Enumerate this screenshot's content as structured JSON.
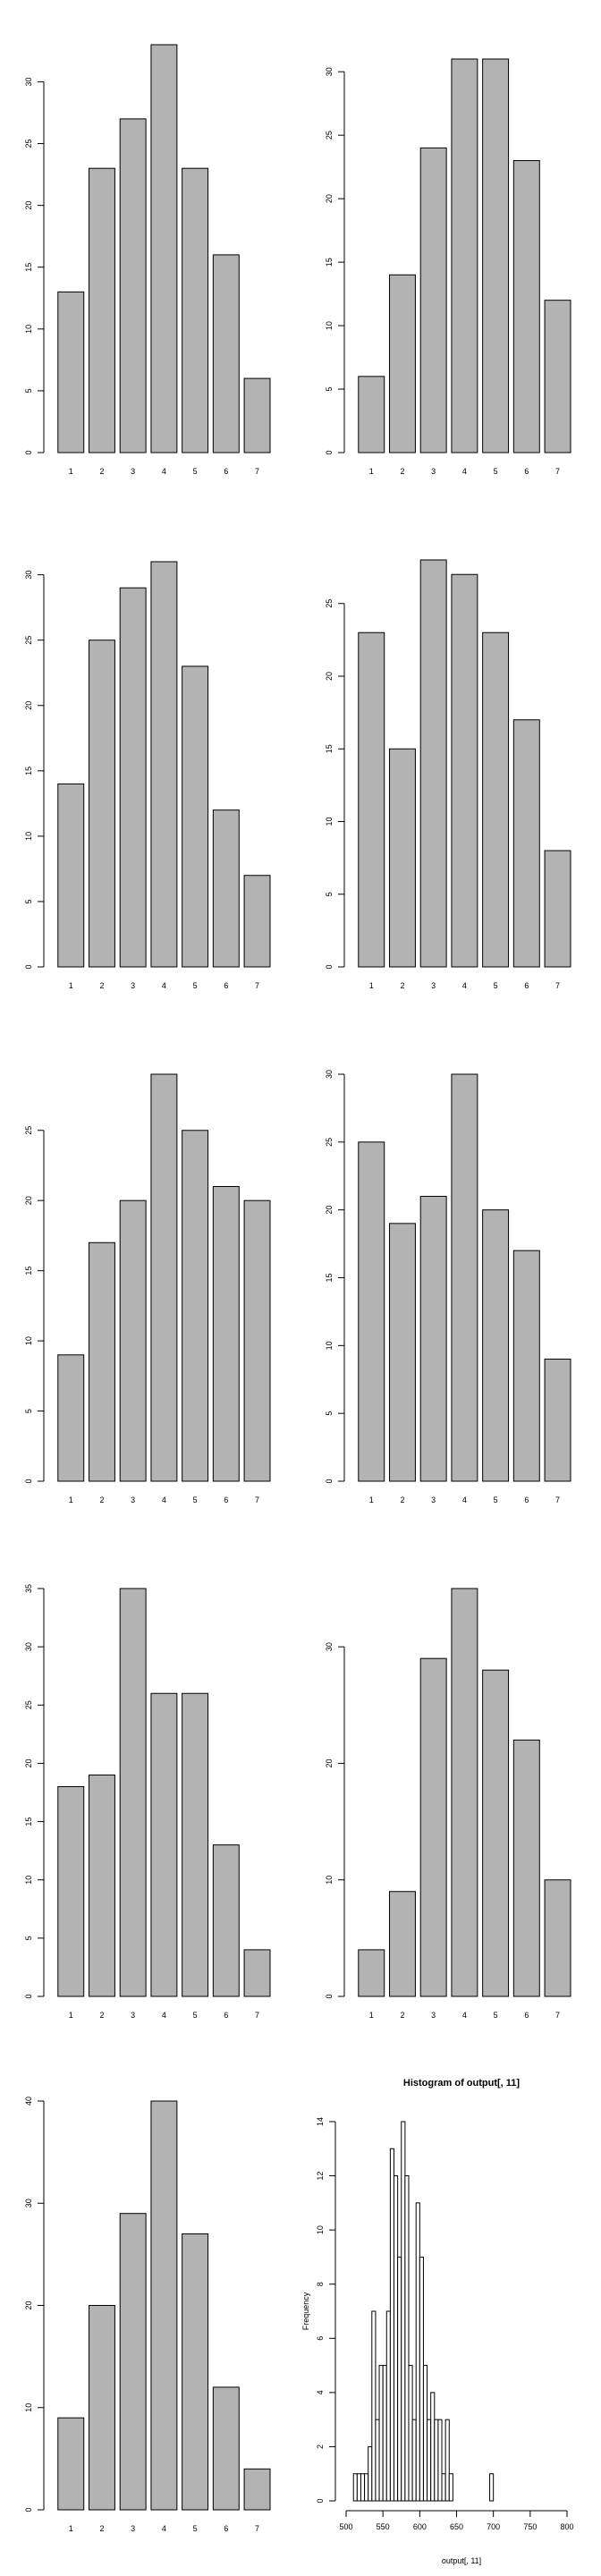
{
  "chart_data": [
    {
      "type": "bar",
      "categories": [
        "1",
        "2",
        "3",
        "4",
        "5",
        "6",
        "7"
      ],
      "values": [
        13,
        23,
        27,
        33,
        23,
        16,
        6
      ],
      "ylim": [
        0,
        33
      ],
      "yticks": [
        0,
        5,
        10,
        15,
        20,
        25,
        30
      ]
    },
    {
      "type": "bar",
      "categories": [
        "1",
        "2",
        "3",
        "4",
        "5",
        "6",
        "7"
      ],
      "values": [
        6,
        14,
        24,
        31,
        31,
        23,
        12
      ],
      "ylim": [
        0,
        31
      ],
      "yticks": [
        0,
        5,
        10,
        15,
        20,
        25,
        30
      ]
    },
    {
      "type": "bar",
      "categories": [
        "1",
        "2",
        "3",
        "4",
        "5",
        "6",
        "7"
      ],
      "values": [
        14,
        25,
        29,
        31,
        23,
        12,
        7
      ],
      "ylim": [
        0,
        31
      ],
      "yticks": [
        0,
        5,
        10,
        15,
        20,
        25,
        30
      ]
    },
    {
      "type": "bar",
      "categories": [
        "1",
        "2",
        "3",
        "4",
        "5",
        "6",
        "7"
      ],
      "values": [
        23,
        15,
        28,
        27,
        23,
        17,
        8
      ],
      "ylim": [
        0,
        28
      ],
      "yticks": [
        0,
        5,
        10,
        15,
        20,
        25
      ]
    },
    {
      "type": "bar",
      "categories": [
        "1",
        "2",
        "3",
        "4",
        "5",
        "6",
        "7"
      ],
      "values": [
        9,
        17,
        20,
        29,
        25,
        21,
        20
      ],
      "ylim": [
        0,
        29
      ],
      "yticks": [
        0,
        5,
        10,
        15,
        20,
        25
      ]
    },
    {
      "type": "bar",
      "categories": [
        "1",
        "2",
        "3",
        "4",
        "5",
        "6",
        "7"
      ],
      "values": [
        25,
        19,
        21,
        30,
        20,
        17,
        9
      ],
      "ylim": [
        0,
        30
      ],
      "yticks": [
        0,
        5,
        10,
        15,
        20,
        25,
        30
      ]
    },
    {
      "type": "bar",
      "categories": [
        "1",
        "2",
        "3",
        "4",
        "5",
        "6",
        "7"
      ],
      "values": [
        18,
        19,
        35,
        26,
        26,
        13,
        4
      ],
      "ylim": [
        0,
        35
      ],
      "yticks": [
        0,
        5,
        10,
        15,
        20,
        25,
        30,
        35
      ]
    },
    {
      "type": "bar",
      "categories": [
        "1",
        "2",
        "3",
        "4",
        "5",
        "6",
        "7"
      ],
      "values": [
        4,
        9,
        29,
        35,
        28,
        22,
        10
      ],
      "ylim": [
        0,
        35
      ],
      "yticks": [
        0,
        10,
        20,
        30
      ]
    },
    {
      "type": "bar",
      "categories": [
        "1",
        "2",
        "3",
        "4",
        "5",
        "6",
        "7"
      ],
      "values": [
        9,
        20,
        29,
        40,
        27,
        12,
        4
      ],
      "ylim": [
        0,
        40
      ],
      "yticks": [
        0,
        10,
        20,
        30,
        40
      ]
    },
    {
      "type": "histogram",
      "title": "Histogram of output[, 11]",
      "xlabel": "output[, 11]",
      "ylabel": "Frequency",
      "bin_start": 510,
      "bin_width": 5,
      "counts": [
        1,
        1,
        1,
        1,
        2,
        7,
        3,
        5,
        5,
        7,
        13,
        12,
        9,
        14,
        12,
        5,
        3,
        11,
        9,
        5,
        3,
        4,
        3,
        3,
        1,
        3,
        1,
        0,
        0,
        0,
        0,
        0,
        0,
        0,
        0,
        0,
        0,
        1
      ],
      "xlim": [
        510,
        800
      ],
      "ylim": [
        0,
        14
      ],
      "xticks": [
        500,
        550,
        600,
        650,
        700,
        750,
        800
      ],
      "yticks": [
        0,
        2,
        4,
        6,
        8,
        10,
        12,
        14
      ]
    }
  ]
}
